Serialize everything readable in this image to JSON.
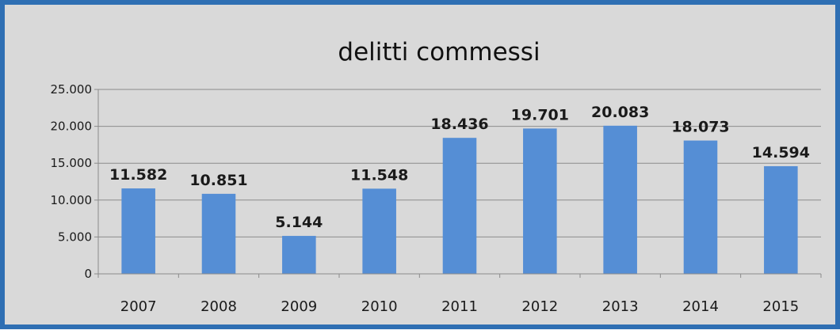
{
  "chart_data": {
    "type": "bar",
    "title": "delitti commessi",
    "xlabel": "",
    "ylabel": "",
    "categories": [
      "2007",
      "2008",
      "2009",
      "2010",
      "2011",
      "2012",
      "2013",
      "2014",
      "2015"
    ],
    "values": [
      11582,
      10851,
      5144,
      11548,
      18436,
      19701,
      20083,
      18073,
      14594
    ],
    "value_labels": [
      "11.582",
      "10.851",
      "5.144",
      "11.548",
      "18.436",
      "19.701",
      "20.083",
      "18.073",
      "14.594"
    ],
    "ylim": [
      0,
      25000
    ],
    "y_ticks": [
      0,
      5000,
      10000,
      15000,
      20000,
      25000
    ],
    "y_tick_labels": [
      "0",
      "5.000",
      "10.000",
      "15.000",
      "20.000",
      "25.000"
    ],
    "grid": true,
    "legend": "none",
    "colors": {
      "bar": "#558ed5",
      "background": "#d9d9d9",
      "frame": "#2f6fb3",
      "grid": "#8c8c8c"
    }
  }
}
